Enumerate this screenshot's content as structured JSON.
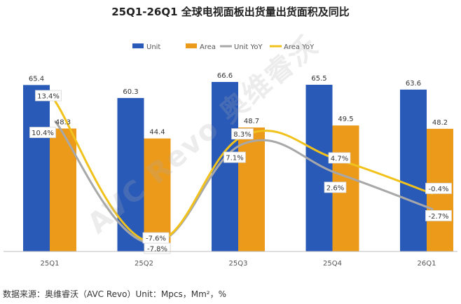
{
  "title": "25Q1-26Q1 全球电视面板出货量出货面积及同比",
  "watermark": "AVC Revo 奥维睿沃",
  "footnote": "数据来源：奥维睿沃（AVC Revo）Unit：Mpcs，Mm²，%",
  "colors": {
    "unit": "#2a5ab8",
    "area": "#eb9a1a",
    "unit_yoy": "#a8a8a8",
    "area_yoy": "#f2c21c"
  },
  "chart_data": {
    "type": "bar",
    "categories": [
      "25Q1",
      "25Q2",
      "25Q3",
      "25Q4",
      "26Q1"
    ],
    "series": [
      {
        "name": "Unit",
        "type": "bar",
        "values": [
          65.4,
          60.3,
          66.6,
          65.5,
          63.6
        ],
        "labels": [
          "65.4",
          "60.3",
          "66.6",
          "65.5",
          "63.6"
        ]
      },
      {
        "name": "Area",
        "type": "bar",
        "values": [
          48.3,
          44.4,
          48.7,
          49.5,
          48.2
        ],
        "labels": [
          "48.3",
          "44.4",
          "48.7",
          "49.5",
          "48.2"
        ]
      },
      {
        "name": "Unit YoY",
        "type": "line",
        "values": [
          10.4,
          -7.8,
          7.1,
          2.6,
          -2.7
        ],
        "labels": [
          "10.4%",
          "-7.8%",
          "7.1%",
          "2.6%",
          "-2.7%"
        ]
      },
      {
        "name": "Area YoY",
        "type": "line",
        "values": [
          13.4,
          -7.6,
          8.3,
          4.7,
          -0.4
        ],
        "labels": [
          "13.4%",
          "-7.6%",
          "8.3%",
          "4.7%",
          "-0.4%"
        ]
      }
    ],
    "bar_axis_range": [
      0,
      70
    ],
    "line_axis_range": [
      -9.5,
      19
    ],
    "legend_position": "top",
    "grid": false
  }
}
